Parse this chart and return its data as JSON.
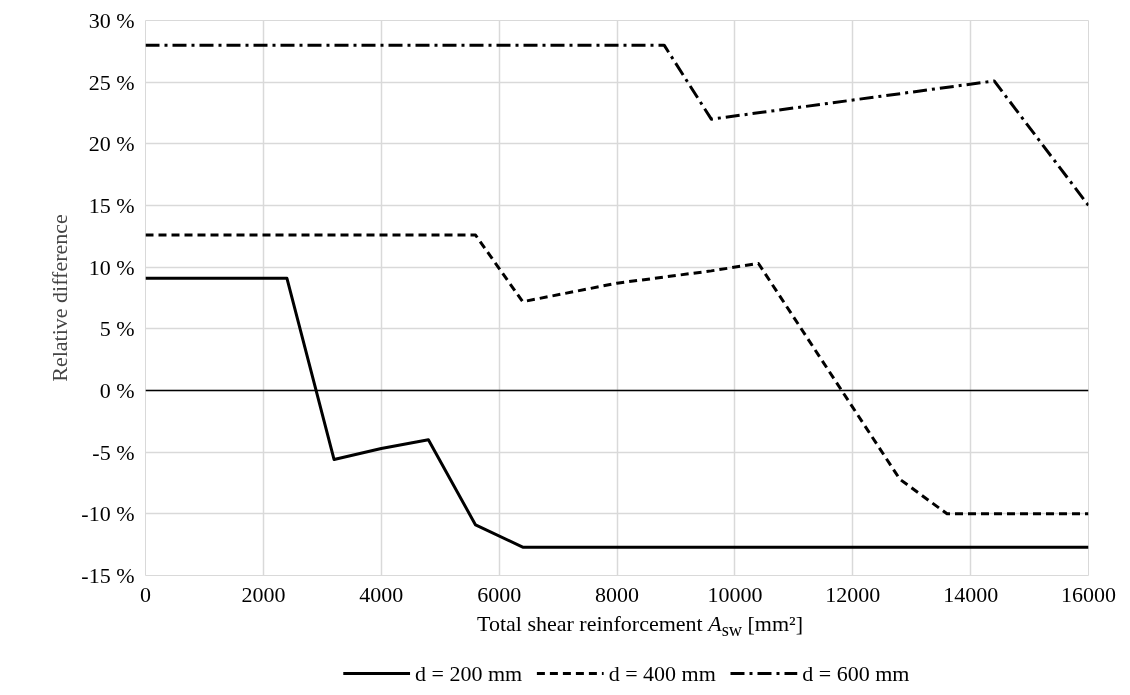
{
  "chart_data": {
    "type": "line",
    "xlabel": "Total shear reinforcement A$_{sw}$ [mm²]",
    "ylabel": "Relative difference",
    "xlim": [
      0,
      16000
    ],
    "xticks": [
      0,
      2000,
      4000,
      6000,
      8000,
      10000,
      12000,
      14000,
      16000
    ],
    "ylim": [
      -15,
      30
    ],
    "yticks": [
      {
        "value": -15,
        "label": "-15 %"
      },
      {
        "value": -10,
        "label": "-10 %"
      },
      {
        "value": -5,
        "label": "-5 %"
      },
      {
        "value": 0,
        "label": "0 %"
      },
      {
        "value": 5,
        "label": "5 %"
      },
      {
        "value": 10,
        "label": "10 %"
      },
      {
        "value": 15,
        "label": "15 %"
      },
      {
        "value": 20,
        "label": "20 %"
      },
      {
        "value": 25,
        "label": "25 %"
      },
      {
        "value": 30,
        "label": "30 %"
      }
    ],
    "grid": true,
    "legend": "bottom",
    "marker": "none",
    "series": [
      {
        "name": "d = 200 mm",
        "color": "#000000",
        "line_style": "solid",
        "x": [
          0,
          2400,
          3200,
          4000,
          4800,
          5600,
          6400,
          16000
        ],
        "values": [
          9.1,
          9.1,
          -5.6,
          -4.7,
          -4.0,
          -10.9,
          -12.7,
          -12.7
        ]
      },
      {
        "name": "d = 400 mm",
        "color": "#000000",
        "line_style": "dashed",
        "x": [
          0,
          5600,
          6400,
          8000,
          9600,
          10400,
          12800,
          13600,
          16000
        ],
        "values": [
          12.6,
          12.6,
          7.2,
          8.7,
          9.7,
          10.3,
          -7.2,
          -10.0,
          -10.0
        ]
      },
      {
        "name": "d = 600 mm",
        "color": "#000000",
        "line_style": "dashdot",
        "x": [
          0,
          8800,
          9600,
          14400,
          16000
        ],
        "values": [
          28.0,
          28.0,
          22.0,
          25.1,
          15.0
        ]
      }
    ]
  }
}
